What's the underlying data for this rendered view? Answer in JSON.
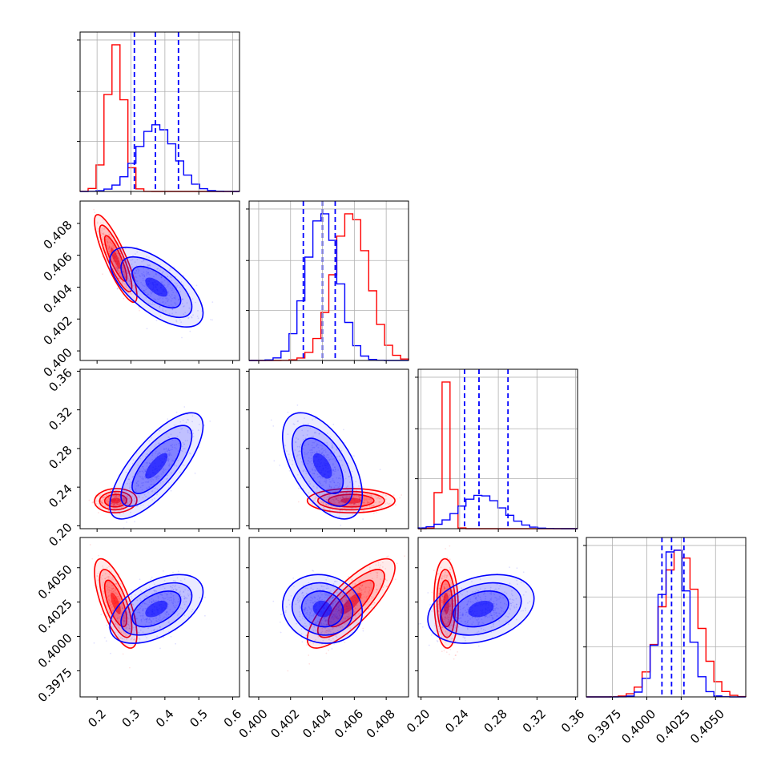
{
  "chart_data": {
    "type": "corner",
    "colors": {
      "series_a": "#ff0000",
      "series_b": "#0000ff"
    },
    "grid": true,
    "dimensions": [
      {
        "range": [
          0.15,
          0.62
        ],
        "ticks": [
          0.2,
          0.3,
          0.4,
          0.5,
          0.6
        ],
        "tick_labels": [
          "0.2",
          "0.3",
          "0.4",
          "0.5",
          "0.6"
        ],
        "a": {
          "mean": 0.255,
          "sd": 0.025
        },
        "b": {
          "mean": 0.375,
          "sd": 0.055
        },
        "quantiles_b": [
          0.31,
          0.372,
          0.44
        ]
      },
      {
        "range": [
          0.3994,
          0.4094
        ],
        "ticks": [
          0.4,
          0.402,
          0.404,
          0.406,
          0.408
        ],
        "tick_labels": [
          "0.400",
          "0.402",
          "0.404",
          "0.406",
          "0.408"
        ],
        "a": {
          "mean": 0.4058,
          "sd": 0.0011
        },
        "b": {
          "mean": 0.404,
          "sd": 0.001
        },
        "quantiles_b": [
          0.4028,
          0.404,
          0.4048
        ]
      },
      {
        "range": [
          0.197,
          0.362
        ],
        "ticks": [
          0.2,
          0.24,
          0.28,
          0.32,
          0.36
        ],
        "tick_labels": [
          "0.20",
          "0.24",
          "0.28",
          "0.32",
          "0.36"
        ],
        "a": {
          "mean": 0.226,
          "sd": 0.005
        },
        "b": {
          "mean": 0.262,
          "sd": 0.022
        },
        "quantiles_b": [
          0.245,
          0.26,
          0.29
        ]
      },
      {
        "range": [
          0.3956,
          0.4072
        ],
        "ticks": [
          0.3975,
          0.4,
          0.4025,
          0.405
        ],
        "tick_labels": [
          "0.3975",
          "0.4000",
          "0.4025",
          "0.4050"
        ],
        "a": {
          "mean": 0.4024,
          "sd": 0.0013
        },
        "b": {
          "mean": 0.402,
          "sd": 0.001
        },
        "quantiles_b": [
          0.4011,
          0.4018,
          0.4027
        ]
      }
    ],
    "correlations": {
      "a": [
        [
          1,
          -0.85,
          0.05,
          -0.7
        ],
        [
          -0.85,
          1,
          0.0,
          0.8
        ],
        [
          0.05,
          0.0,
          1,
          -0.1
        ],
        [
          -0.7,
          0.8,
          -0.1,
          1
        ]
      ],
      "b": [
        [
          1,
          -0.65,
          0.75,
          0.5
        ],
        [
          -0.65,
          1,
          -0.55,
          -0.1
        ],
        [
          0.75,
          -0.55,
          1,
          0.3
        ],
        [
          0.5,
          -0.1,
          0.3,
          1
        ]
      ]
    }
  }
}
